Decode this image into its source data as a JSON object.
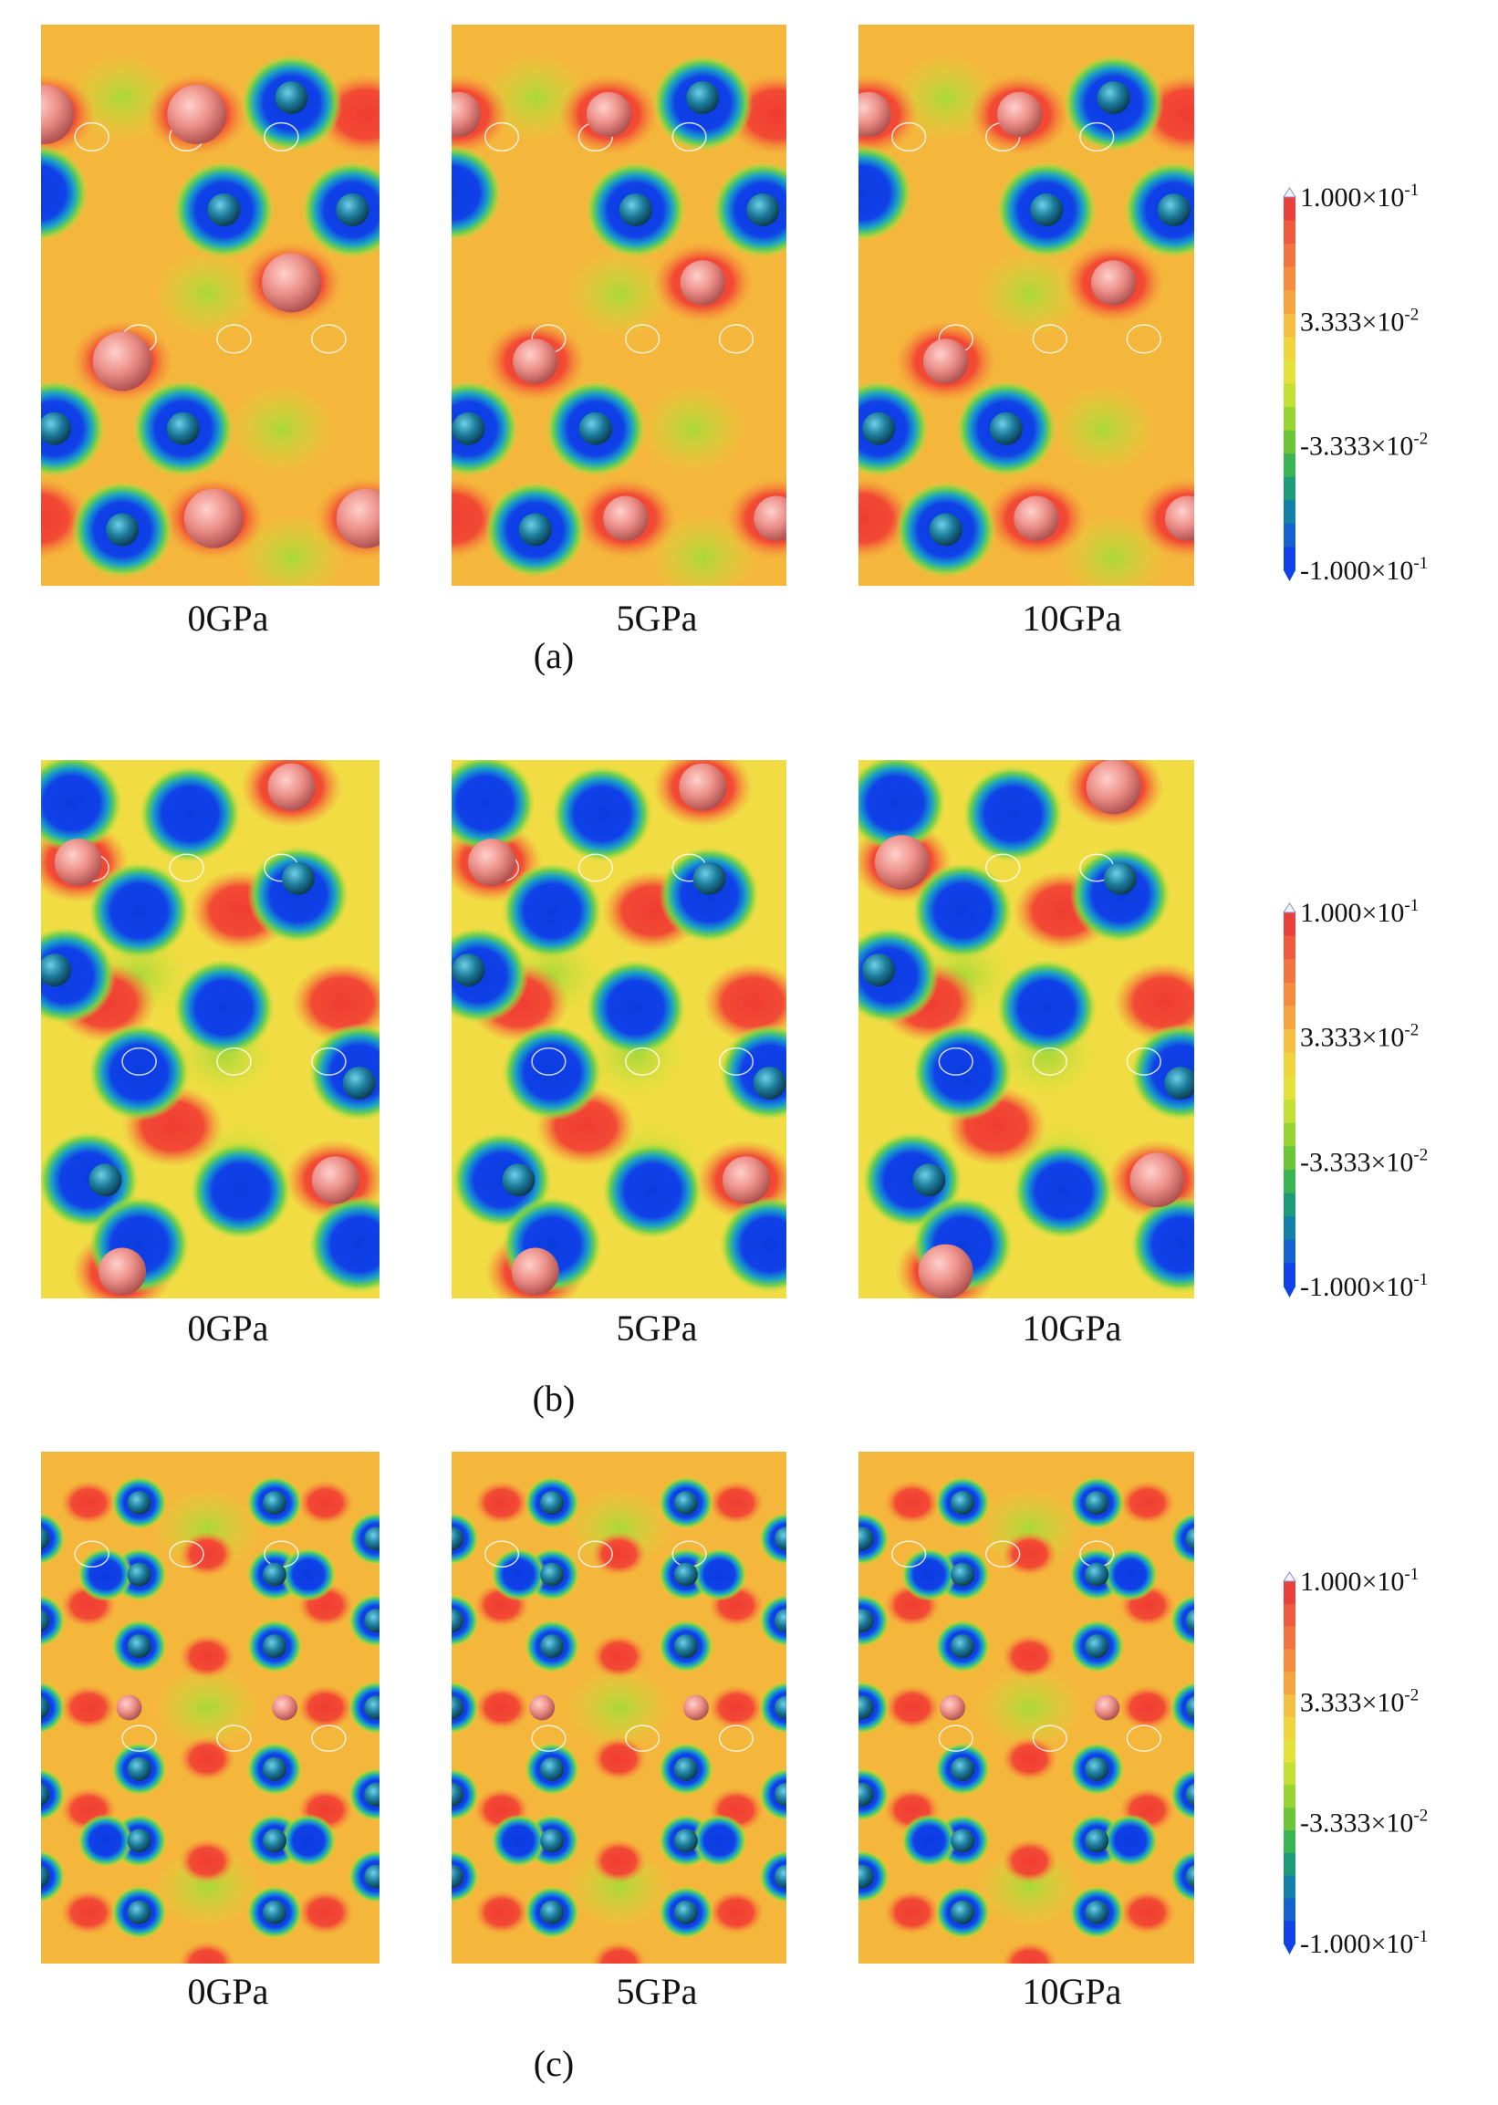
{
  "figure": {
    "rows": [
      {
        "label": "(a)",
        "panels": [
          "0GPa",
          "5GPa",
          "10GPa"
        ],
        "colorbar": [
          {
            "base": "1.000×10",
            "exponent": "-1"
          },
          {
            "base": "3.333×10",
            "exponent": "-2"
          },
          {
            "base": "-3.333×10",
            "exponent": "-2"
          },
          {
            "base": "-1.000×10",
            "exponent": "-1"
          }
        ]
      },
      {
        "label": "(b)",
        "panels": [
          "0GPa",
          "5GPa",
          "10GPa"
        ],
        "colorbar": [
          {
            "base": "1.000×10",
            "exponent": "-1"
          },
          {
            "base": "3.333×10",
            "exponent": "-2"
          },
          {
            "base": "-3.333×10",
            "exponent": "-2"
          },
          {
            "base": "-1.000×10",
            "exponent": "-1"
          }
        ]
      },
      {
        "label": "(c)",
        "panels": [
          "0GPa",
          "5GPa",
          "10GPa"
        ],
        "colorbar": [
          {
            "base": "1.000×10",
            "exponent": "-1"
          },
          {
            "base": "3.333×10",
            "exponent": "-2"
          },
          {
            "base": "-3.333×10",
            "exponent": "-2"
          },
          {
            "base": "-1.000×10",
            "exponent": "-1"
          }
        ]
      }
    ]
  }
}
